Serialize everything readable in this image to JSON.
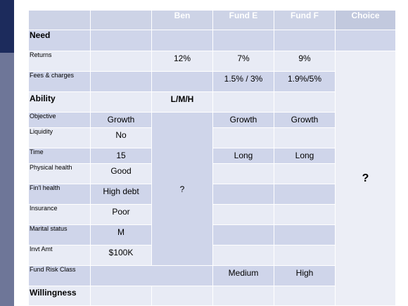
{
  "table": {
    "headers": [
      "Ben",
      "Fund E",
      "Fund F",
      "Choice"
    ],
    "rows": [
      {
        "label": "Need"
      },
      {
        "label": "Returns",
        "ben": "12%",
        "fund_e": "7%",
        "fund_f": "9%"
      },
      {
        "label": "Fees & charges",
        "fund_e": "1.5% / 3%",
        "fund_f": "1.9%/5%"
      },
      {
        "label": "Ability",
        "ben": "L/M/H"
      },
      {
        "label": "Objective",
        "detail": "Growth",
        "fund_e": "Growth",
        "fund_f": "Growth"
      },
      {
        "label": "Liquidity",
        "detail": "No"
      },
      {
        "label": "Time",
        "detail": "15",
        "fund_e": "Long",
        "fund_f": "Long"
      },
      {
        "label": "Physical health",
        "detail": "Good"
      },
      {
        "label": "Fin'l health",
        "detail": "High debt"
      },
      {
        "label": "Insurance",
        "detail": "Poor"
      },
      {
        "label": "Marital status",
        "detail": "M"
      },
      {
        "label": "Invt Amt",
        "detail": "$100K"
      },
      {
        "label": "Fund Risk Class",
        "fund_e": "Medium",
        "fund_f": "High"
      },
      {
        "label": "Willingness"
      }
    ],
    "ben_merged": "?",
    "choice_merged": "?"
  }
}
